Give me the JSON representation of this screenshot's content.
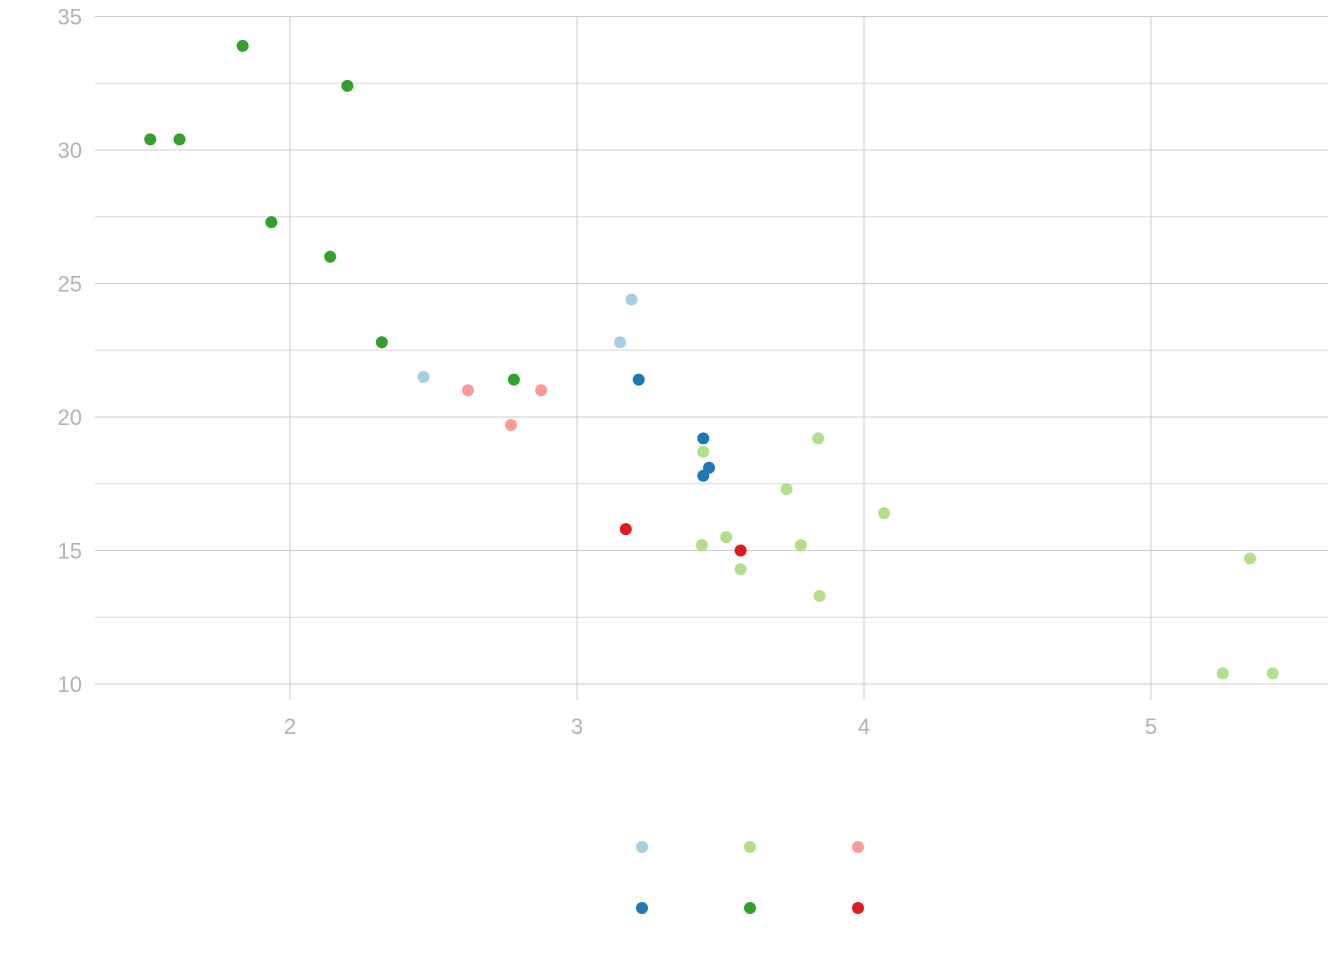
{
  "chart_data": {
    "type": "scatter",
    "title": "",
    "xlabel": "",
    "ylabel": "",
    "xlim": [
      1.32,
      5.62
    ],
    "ylim": [
      9.0,
      35.0
    ],
    "x_ticks": [
      2,
      3,
      4,
      5
    ],
    "x_tick_labels": [
      "2",
      "3",
      "4",
      "5"
    ],
    "y_ticks": [
      10,
      15,
      20,
      25,
      30,
      35
    ],
    "y_tick_labels": [
      "10",
      "15",
      "20",
      "25",
      "30",
      "35"
    ],
    "y_minor_ticks": [
      12.5,
      17.5,
      22.5,
      27.5,
      32.5
    ],
    "grid": true,
    "legend_position": "bottom",
    "series": [
      {
        "color": "#a6cee3",
        "points": [
          [
            2.465,
            21.5
          ],
          [
            3.15,
            22.8
          ],
          [
            3.19,
            24.4
          ]
        ]
      },
      {
        "color": "#1f78b4",
        "points": [
          [
            3.215,
            21.4
          ],
          [
            3.44,
            19.2
          ],
          [
            3.46,
            18.1
          ],
          [
            3.44,
            17.8
          ]
        ]
      },
      {
        "color": "#b2df8a",
        "points": [
          [
            3.44,
            18.7
          ],
          [
            3.84,
            19.2
          ],
          [
            3.73,
            17.3
          ],
          [
            4.07,
            16.4
          ],
          [
            3.435,
            15.2
          ],
          [
            3.52,
            15.5
          ],
          [
            3.78,
            15.2
          ],
          [
            3.57,
            14.3
          ],
          [
            3.845,
            13.3
          ],
          [
            5.345,
            14.7
          ],
          [
            5.25,
            10.4
          ],
          [
            5.424,
            10.4
          ]
        ]
      },
      {
        "color": "#33a02c",
        "points": [
          [
            1.835,
            33.9
          ],
          [
            2.2,
            32.4
          ],
          [
            1.513,
            30.4
          ],
          [
            1.615,
            30.4
          ],
          [
            1.935,
            27.3
          ],
          [
            2.14,
            26.0
          ],
          [
            2.32,
            22.8
          ],
          [
            2.78,
            21.4
          ]
        ]
      },
      {
        "color": "#fb9a99",
        "points": [
          [
            2.62,
            21.0
          ],
          [
            2.875,
            21.0
          ],
          [
            2.77,
            19.7
          ]
        ]
      },
      {
        "color": "#e31a1c",
        "points": [
          [
            3.17,
            15.8
          ],
          [
            3.57,
            15.0
          ]
        ]
      }
    ],
    "legend": {
      "columns": 3,
      "entries": [
        {
          "color": "#a6cee3"
        },
        {
          "color": "#b2df8a"
        },
        {
          "color": "#fb9a99"
        },
        {
          "color": "#1f78b4"
        },
        {
          "color": "#33a02c"
        },
        {
          "color": "#e31a1c"
        }
      ]
    }
  }
}
